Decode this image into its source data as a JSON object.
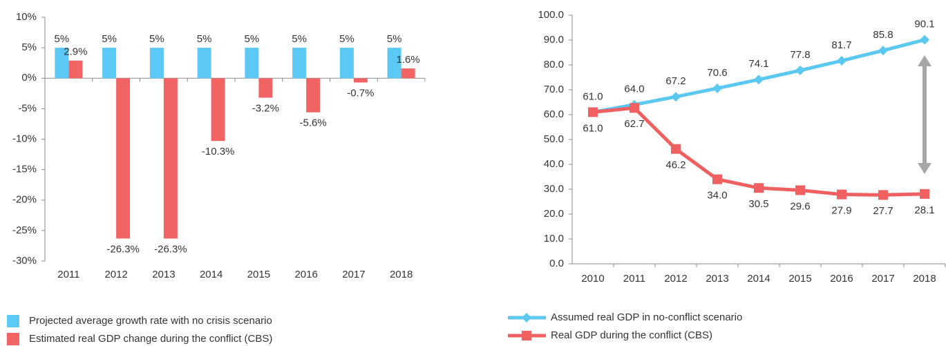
{
  "chart_data": [
    {
      "type": "bar",
      "categories": [
        "2011",
        "2012",
        "2013",
        "2014",
        "2015",
        "2016",
        "2017",
        "2018"
      ],
      "series": [
        {
          "name": "Projected average growth rate with no crisis scenario",
          "color": "#5bc8f5",
          "values": [
            5,
            5,
            5,
            5,
            5,
            5,
            5,
            5
          ],
          "value_labels": [
            "5%",
            "5%",
            "5%",
            "5%",
            "5%",
            "5%",
            "5%",
            "5%"
          ]
        },
        {
          "name": "Estimated real GDP change during the conflict (CBS)",
          "color": "#f26363",
          "values": [
            2.9,
            -26.3,
            -26.3,
            -10.3,
            -3.2,
            -5.6,
            -0.7,
            1.6
          ],
          "value_labels": [
            "2.9%",
            "-26.3%",
            "-26.3%",
            "-10.3%",
            "-3.2%",
            "-5.6%",
            "-0.7%",
            "1.6%"
          ]
        }
      ],
      "ylim": [
        -30,
        10
      ],
      "yticks": [
        {
          "value": 10,
          "label": "10%"
        },
        {
          "value": 5,
          "label": "5%"
        },
        {
          "value": 0,
          "label": "0%"
        },
        {
          "value": -5,
          "label": "-5%"
        },
        {
          "value": -10,
          "label": "-10%"
        },
        {
          "value": -15,
          "label": "-15%"
        },
        {
          "value": -20,
          "label": "-20%"
        },
        {
          "value": -25,
          "label": "-25%"
        },
        {
          "value": -30,
          "label": "-30%"
        }
      ],
      "legend": "bottom-left"
    },
    {
      "type": "line",
      "categories": [
        "2010",
        "2011",
        "2012",
        "2013",
        "2014",
        "2015",
        "2016",
        "2017",
        "2018"
      ],
      "series": [
        {
          "name": "Assumed real GDP in no-conflict scenario",
          "color": "#5bc8f0",
          "marker": "diamond",
          "values": [
            61.0,
            64.0,
            67.2,
            70.6,
            74.1,
            77.8,
            81.7,
            85.8,
            90.1
          ],
          "value_labels": [
            "61.0",
            "64.0",
            "67.2",
            "70.6",
            "74.1",
            "77.8",
            "81.7",
            "85.8",
            "90.1"
          ]
        },
        {
          "name": "Real GDP during the conflict (CBS)",
          "color": "#f06060",
          "marker": "square",
          "values": [
            61.0,
            62.7,
            46.2,
            34.0,
            30.5,
            29.6,
            27.9,
            27.7,
            28.1
          ],
          "value_labels": [
            "61.0",
            "62.7",
            "46.2",
            "34.0",
            "30.5",
            "29.6",
            "27.9",
            "27.7",
            "28.1"
          ]
        }
      ],
      "ylim": [
        0,
        100
      ],
      "yticks": [
        {
          "value": 0,
          "label": "0.0"
        },
        {
          "value": 10,
          "label": "10.0"
        },
        {
          "value": 20,
          "label": "20.0"
        },
        {
          "value": 30,
          "label": "30.0"
        },
        {
          "value": 40,
          "label": "40.0"
        },
        {
          "value": 50,
          "label": "50.0"
        },
        {
          "value": 60,
          "label": "60.0"
        },
        {
          "value": 70,
          "label": "70.0"
        },
        {
          "value": 80,
          "label": "80.0"
        },
        {
          "value": 90,
          "label": "90.0"
        },
        {
          "value": 100,
          "label": "100.0"
        }
      ],
      "legend": "bottom-left"
    }
  ]
}
